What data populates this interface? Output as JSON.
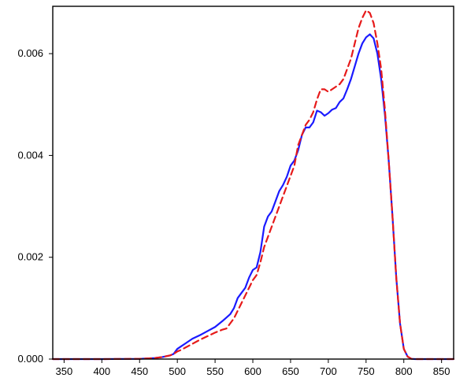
{
  "chart_data": {
    "type": "line",
    "title": "",
    "xlabel": "",
    "ylabel": "",
    "xlim": [
      335,
      866
    ],
    "ylim": [
      0.0,
      0.00693
    ],
    "x_ticks": [
      350,
      400,
      450,
      500,
      550,
      600,
      650,
      700,
      750,
      800,
      850
    ],
    "x_tick_labels": [
      "350",
      "400",
      "450",
      "500",
      "550",
      "600",
      "650",
      "700",
      "750",
      "800",
      "850"
    ],
    "y_ticks": [
      0.0,
      0.002,
      0.004,
      0.006
    ],
    "y_tick_labels": [
      "0.000",
      "0.002",
      "0.004",
      "0.006"
    ],
    "grid": false,
    "series": [
      {
        "color": "#1a1aff",
        "dash": "solid",
        "points": [
          [
            335,
            0
          ],
          [
            400,
            0
          ],
          [
            450,
            5e-06
          ],
          [
            470,
            2e-05
          ],
          [
            480,
            4e-05
          ],
          [
            490,
            7e-05
          ],
          [
            495,
            0.0001
          ],
          [
            500,
            0.0002
          ],
          [
            505,
            0.00025
          ],
          [
            510,
            0.0003
          ],
          [
            520,
            0.0004
          ],
          [
            530,
            0.00047
          ],
          [
            540,
            0.00055
          ],
          [
            550,
            0.00063
          ],
          [
            560,
            0.00075
          ],
          [
            570,
            0.00088
          ],
          [
            575,
            0.001
          ],
          [
            580,
            0.0012
          ],
          [
            585,
            0.0013
          ],
          [
            590,
            0.0014
          ],
          [
            595,
            0.0016
          ],
          [
            600,
            0.00175
          ],
          [
            605,
            0.0018
          ],
          [
            610,
            0.0021
          ],
          [
            615,
            0.0026
          ],
          [
            620,
            0.0028
          ],
          [
            625,
            0.0029
          ],
          [
            630,
            0.0031
          ],
          [
            635,
            0.0033
          ],
          [
            640,
            0.00342
          ],
          [
            645,
            0.00358
          ],
          [
            650,
            0.0038
          ],
          [
            655,
            0.0039
          ],
          [
            660,
            0.0041
          ],
          [
            665,
            0.0044
          ],
          [
            670,
            0.00455
          ],
          [
            675,
            0.00455
          ],
          [
            680,
            0.00465
          ],
          [
            685,
            0.00488
          ],
          [
            690,
            0.00485
          ],
          [
            695,
            0.00478
          ],
          [
            700,
            0.00483
          ],
          [
            705,
            0.0049
          ],
          [
            710,
            0.00493
          ],
          [
            715,
            0.00505
          ],
          [
            720,
            0.00512
          ],
          [
            725,
            0.0053
          ],
          [
            730,
            0.0055
          ],
          [
            735,
            0.00575
          ],
          [
            740,
            0.006
          ],
          [
            745,
            0.0062
          ],
          [
            750,
            0.00632
          ],
          [
            755,
            0.00638
          ],
          [
            760,
            0.0063
          ],
          [
            765,
            0.006
          ],
          [
            770,
            0.0055
          ],
          [
            775,
            0.0048
          ],
          [
            780,
            0.0039
          ],
          [
            785,
            0.0028
          ],
          [
            790,
            0.0016
          ],
          [
            795,
            0.0007
          ],
          [
            800,
            0.0002
          ],
          [
            805,
            5e-05
          ],
          [
            810,
            5e-06
          ],
          [
            815,
            0
          ],
          [
            866,
            0
          ]
        ]
      },
      {
        "color": "#e61a1a",
        "dash": "dashed",
        "points": [
          [
            335,
            0
          ],
          [
            400,
            0
          ],
          [
            450,
            5e-06
          ],
          [
            470,
            2e-05
          ],
          [
            480,
            4e-05
          ],
          [
            490,
            7e-05
          ],
          [
            495,
            0.0001
          ],
          [
            500,
            0.00015
          ],
          [
            505,
            0.00018
          ],
          [
            510,
            0.00022
          ],
          [
            520,
            0.0003
          ],
          [
            530,
            0.00038
          ],
          [
            540,
            0.00045
          ],
          [
            550,
            0.00052
          ],
          [
            560,
            0.00058
          ],
          [
            565,
            0.0006
          ],
          [
            570,
            0.0007
          ],
          [
            575,
            0.0008
          ],
          [
            580,
            0.00095
          ],
          [
            585,
            0.0011
          ],
          [
            590,
            0.00125
          ],
          [
            595,
            0.0014
          ],
          [
            600,
            0.00155
          ],
          [
            605,
            0.00165
          ],
          [
            610,
            0.0019
          ],
          [
            615,
            0.0022
          ],
          [
            620,
            0.0024
          ],
          [
            625,
            0.0026
          ],
          [
            630,
            0.0028
          ],
          [
            635,
            0.003
          ],
          [
            640,
            0.0032
          ],
          [
            645,
            0.0034
          ],
          [
            650,
            0.0036
          ],
          [
            655,
            0.0038
          ],
          [
            660,
            0.0042
          ],
          [
            665,
            0.0044
          ],
          [
            670,
            0.0046
          ],
          [
            675,
            0.0047
          ],
          [
            680,
            0.00485
          ],
          [
            685,
            0.0051
          ],
          [
            690,
            0.0053
          ],
          [
            695,
            0.0053
          ],
          [
            700,
            0.00525
          ],
          [
            705,
            0.0053
          ],
          [
            710,
            0.00535
          ],
          [
            715,
            0.0054
          ],
          [
            720,
            0.0055
          ],
          [
            725,
            0.0057
          ],
          [
            730,
            0.0059
          ],
          [
            735,
            0.0062
          ],
          [
            740,
            0.0065
          ],
          [
            745,
            0.0067
          ],
          [
            750,
            0.00685
          ],
          [
            755,
            0.0068
          ],
          [
            760,
            0.0066
          ],
          [
            765,
            0.0062
          ],
          [
            770,
            0.0057
          ],
          [
            775,
            0.0049
          ],
          [
            780,
            0.0039
          ],
          [
            785,
            0.0028
          ],
          [
            790,
            0.0016
          ],
          [
            795,
            0.0007
          ],
          [
            800,
            0.0002
          ],
          [
            805,
            5e-05
          ],
          [
            810,
            5e-06
          ],
          [
            815,
            0
          ],
          [
            866,
            0
          ]
        ]
      }
    ]
  }
}
